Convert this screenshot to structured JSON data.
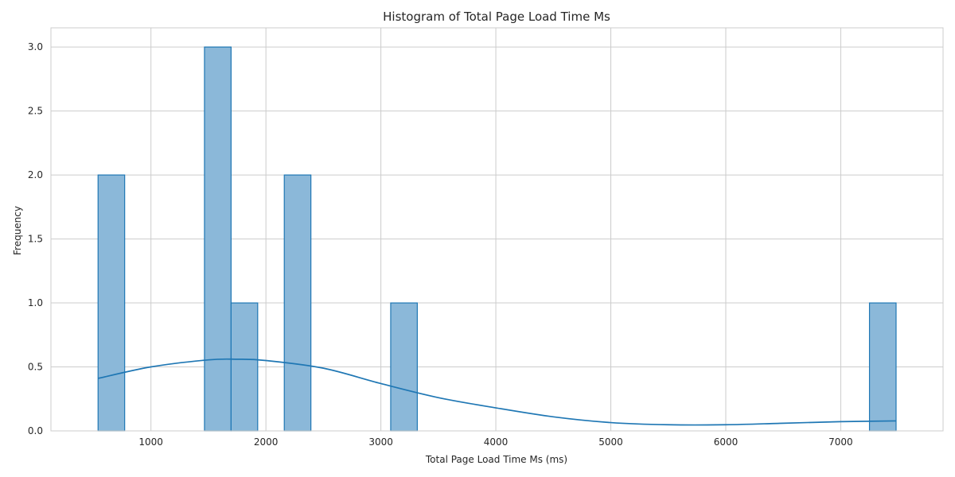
{
  "chart_data": {
    "type": "bar",
    "subtype": "histogram",
    "title": "Histogram of Total Page Load Time Ms",
    "xlabel": "Total Page Load Time Ms (ms)",
    "ylabel": "Frequency",
    "xlim": [
      130,
      7890
    ],
    "ylim": [
      0,
      3.15
    ],
    "xticks": [
      1000,
      2000,
      3000,
      4000,
      5000,
      6000,
      7000
    ],
    "yticks": [
      0.0,
      0.5,
      1.0,
      1.5,
      2.0,
      2.5,
      3.0
    ],
    "bin_start": 540,
    "bin_width": 231.4,
    "bins": [
      {
        "x0": 540,
        "x1": 771.4,
        "count": 2
      },
      {
        "x0": 1465.6,
        "x1": 1697,
        "count": 3
      },
      {
        "x0": 1697,
        "x1": 1928.4,
        "count": 1
      },
      {
        "x0": 2159.8,
        "x1": 2391.2,
        "count": 2
      },
      {
        "x0": 3085.4,
        "x1": 3316.8,
        "count": 1
      },
      {
        "x0": 7250,
        "x1": 7481.4,
        "count": 1
      }
    ],
    "kde": {
      "x": [
        540,
        1000,
        1500,
        1750,
        2000,
        2500,
        3000,
        3500,
        4000,
        4500,
        5000,
        5500,
        6000,
        6500,
        7000,
        7480
      ],
      "y": [
        0.41,
        0.5,
        0.555,
        0.56,
        0.55,
        0.49,
        0.37,
        0.26,
        0.18,
        0.11,
        0.065,
        0.048,
        0.048,
        0.06,
        0.072,
        0.078
      ]
    },
    "grid": true,
    "colors": {
      "bar_fill": "#8bb8d9",
      "bar_edge": "#1f77b4",
      "kde_line": "#1f77b4",
      "grid": "#cccccc"
    }
  }
}
